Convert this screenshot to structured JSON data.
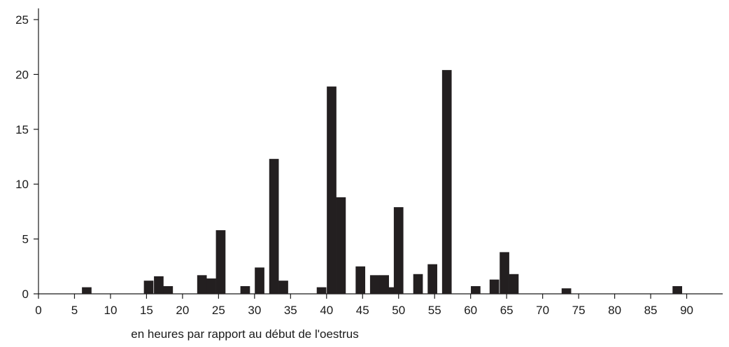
{
  "chart_data": {
    "type": "bar",
    "title": "",
    "xlabel": "en heures par rapport au début de l'oestrus",
    "ylabel": "",
    "xlim": [
      0,
      95
    ],
    "ylim": [
      0,
      25
    ],
    "x_ticks": [
      "0",
      "5",
      "10",
      "15",
      "20",
      "25",
      "30",
      "35",
      "40",
      "45",
      "50",
      "55",
      "60",
      "65",
      "70",
      "75",
      "80",
      "85",
      "90"
    ],
    "y_ticks": [
      "0",
      "5",
      "10",
      "15",
      "20",
      "25"
    ],
    "bar_color": "#231f20",
    "bars": [
      {
        "x": 6.7,
        "value": 0.6
      },
      {
        "x": 15.3,
        "value": 1.2
      },
      {
        "x": 16.7,
        "value": 1.6
      },
      {
        "x": 18.0,
        "value": 0.7
      },
      {
        "x": 22.7,
        "value": 1.7
      },
      {
        "x": 24.0,
        "value": 1.4
      },
      {
        "x": 25.3,
        "value": 5.8
      },
      {
        "x": 28.7,
        "value": 0.7
      },
      {
        "x": 30.7,
        "value": 2.4
      },
      {
        "x": 32.7,
        "value": 12.3
      },
      {
        "x": 34.0,
        "value": 1.2
      },
      {
        "x": 39.3,
        "value": 0.6
      },
      {
        "x": 40.7,
        "value": 18.9
      },
      {
        "x": 42.0,
        "value": 8.8
      },
      {
        "x": 44.7,
        "value": 2.5
      },
      {
        "x": 46.7,
        "value": 1.7
      },
      {
        "x": 48.0,
        "value": 1.7
      },
      {
        "x": 49.3,
        "value": 0.6
      },
      {
        "x": 50.0,
        "value": 7.9
      },
      {
        "x": 52.7,
        "value": 1.8
      },
      {
        "x": 54.7,
        "value": 2.7
      },
      {
        "x": 56.7,
        "value": 20.4
      },
      {
        "x": 60.7,
        "value": 0.7
      },
      {
        "x": 63.3,
        "value": 1.3
      },
      {
        "x": 64.7,
        "value": 3.8
      },
      {
        "x": 66.0,
        "value": 1.8
      },
      {
        "x": 73.3,
        "value": 0.5
      },
      {
        "x": 88.7,
        "value": 0.7
      }
    ]
  }
}
